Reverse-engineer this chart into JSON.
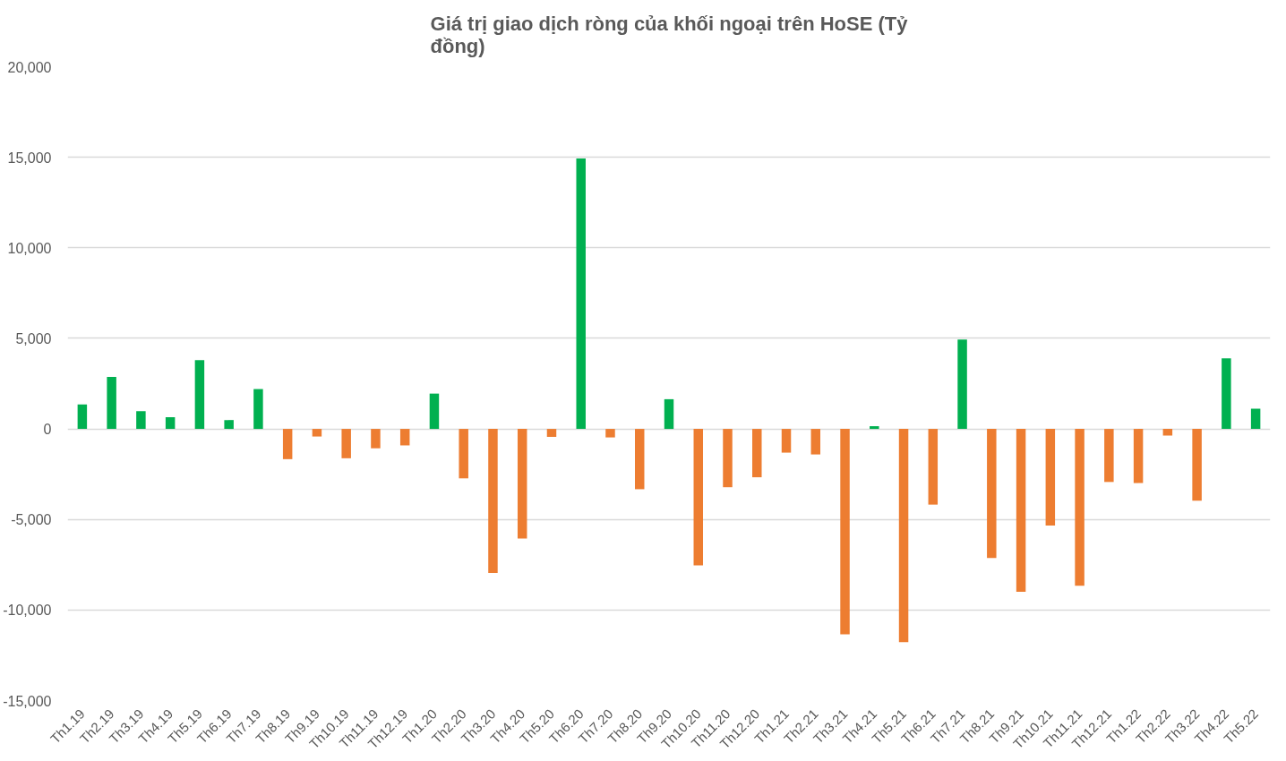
{
  "chart_data": {
    "type": "bar",
    "title": "Giá trị giao dịch ròng của khối ngoại trên HoSE (Tỷ đồng)",
    "categories": [
      "Th1.19",
      "Th2.19",
      "Th3.19",
      "Th4.19",
      "Th5.19",
      "Th6.19",
      "Th7.19",
      "Th8.19",
      "Th9.19",
      "Th10.19",
      "Th11.19",
      "Th12.19",
      "Th1.20",
      "Th2.20",
      "Th3.20",
      "Th4.20",
      "Th5.20",
      "Th6.20",
      "Th7.20",
      "Th8.20",
      "Th9.20",
      "Th10.20",
      "Th11.20",
      "Th12.20",
      "Th1.21",
      "Th2.21",
      "Th3.21",
      "Th4.21",
      "Th5.21",
      "Th6.21",
      "Th7.21",
      "Th8.21",
      "Th9.21",
      "Th10.21",
      "Th11.21",
      "Th12.21",
      "Th1.22",
      "Th2.22",
      "Th3.22",
      "Th4.22",
      "Th5.22"
    ],
    "values": [
      1350,
      2870,
      980,
      650,
      3800,
      490,
      2200,
      -1670,
      -420,
      -1620,
      -1070,
      -910,
      1950,
      -2730,
      -7960,
      -6050,
      -440,
      14930,
      -470,
      -3330,
      1640,
      -7530,
      -3220,
      -2670,
      -1310,
      -1410,
      -11340,
      150,
      -11770,
      -4180,
      4940,
      -7130,
      -8990,
      -5340,
      -8660,
      -2930,
      -2990,
      -370,
      -3960,
      3900,
      1120
    ],
    "colors": [
      "#00b050",
      "#00b050",
      "#00b050",
      "#00b050",
      "#00b050",
      "#00b050",
      "#00b050",
      "#ed7d31",
      "#ed7d31",
      "#ed7d31",
      "#ed7d31",
      "#ed7d31",
      "#00b050",
      "#ed7d31",
      "#ed7d31",
      "#ed7d31",
      "#ed7d31",
      "#00b050",
      "#ed7d31",
      "#ed7d31",
      "#00b050",
      "#ed7d31",
      "#ed7d31",
      "#ed7d31",
      "#ed7d31",
      "#ed7d31",
      "#ed7d31",
      "#00b050",
      "#ed7d31",
      "#ed7d31",
      "#00b050",
      "#ed7d31",
      "#ed7d31",
      "#ed7d31",
      "#ed7d31",
      "#ed7d31",
      "#ed7d31",
      "#ed7d31",
      "#ed7d31",
      "#00b050",
      "#00b050"
    ],
    "ylim": [
      -15000,
      20000
    ],
    "yticks": [
      {
        "value": -15000,
        "label": "-15,000"
      },
      {
        "value": -10000,
        "label": "-10,000"
      },
      {
        "value": -5000,
        "label": "-5,000"
      },
      0,
      {
        "value": 5000,
        "label": "5,000"
      },
      {
        "value": 10000,
        "label": "10,000"
      },
      {
        "value": 15000,
        "label": "15,000"
      },
      {
        "value": 20000,
        "label": "20,000"
      }
    ],
    "grid": "y"
  }
}
